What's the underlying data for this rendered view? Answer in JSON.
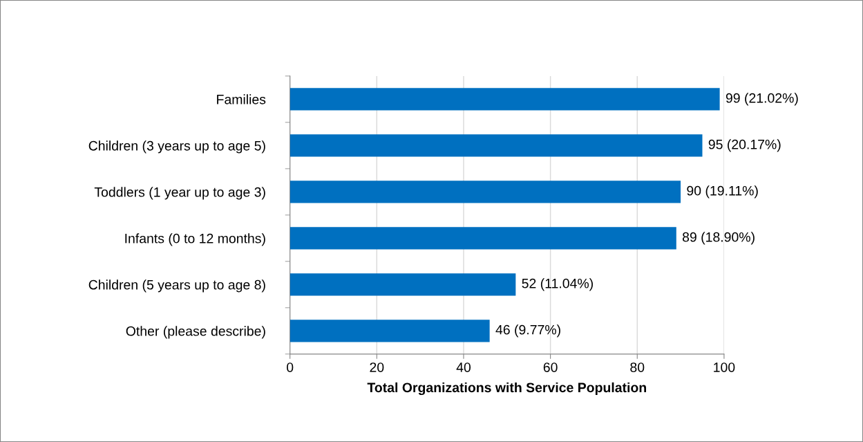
{
  "chart_data": {
    "type": "bar",
    "orientation": "horizontal",
    "xlabel": "Total Organizations with Service Population",
    "categories": [
      "Families",
      "Children (3 years up to age 5)",
      "Toddlers (1 year up to age 3)",
      "Infants (0 to 12 months)",
      "Children (5 years up to age 8)",
      "Other (please describe)"
    ],
    "values": [
      99,
      95,
      90,
      89,
      52,
      46
    ],
    "value_labels": [
      "99 (21.02%)",
      "95 (20.17%)",
      "90 (19.11%)",
      "89 (18.90%)",
      "52 (11.04%)",
      "46 (9.77%)"
    ],
    "color": "#0070c0",
    "xlim": [
      0,
      100
    ],
    "xticks": [
      0,
      20,
      40,
      60,
      80,
      100
    ],
    "grid": "x",
    "legend": false
  }
}
